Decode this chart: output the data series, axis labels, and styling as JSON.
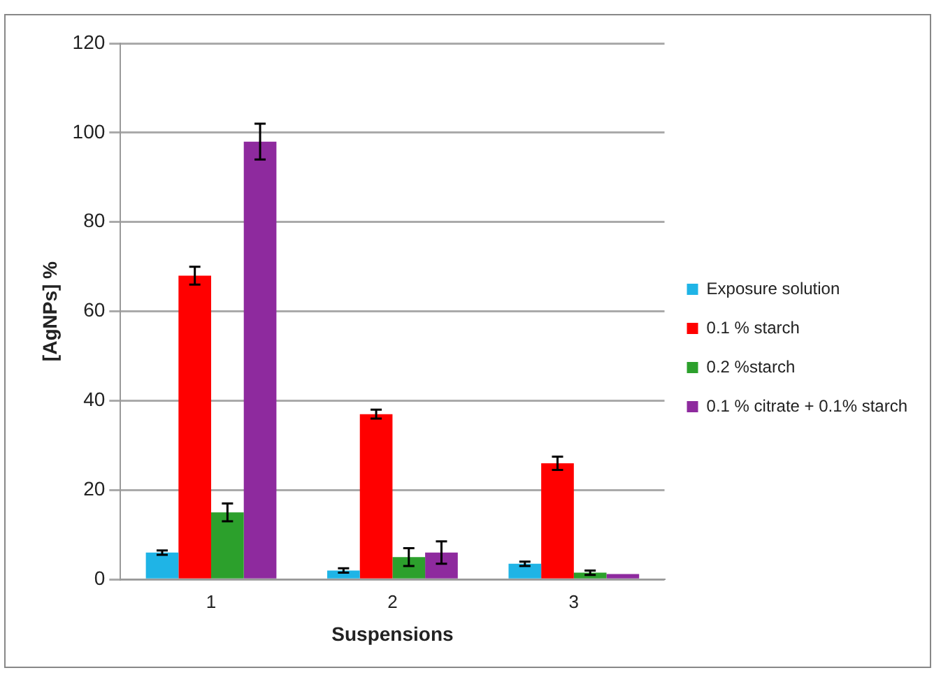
{
  "chart_data": {
    "type": "bar",
    "xlabel": "Suspensions",
    "ylabel": "[AgNPs] %",
    "categories": [
      "1",
      "2",
      "3"
    ],
    "series": [
      {
        "name": "Exposure solution",
        "color": "#1fb4e6",
        "values": [
          6,
          2,
          3.5
        ],
        "errors": [
          0.5,
          0.5,
          0.5
        ]
      },
      {
        "name": "0.1 % starch",
        "color": "#ff0000",
        "values": [
          68,
          37,
          26
        ],
        "errors": [
          2,
          1,
          1.5
        ]
      },
      {
        "name": "0.2 %starch",
        "color": "#2ca02c",
        "values": [
          15,
          5,
          1.5
        ],
        "errors": [
          2,
          2,
          0.5
        ]
      },
      {
        "name": "0.1 % citrate + 0.1% starch",
        "color": "#8e2a9e",
        "values": [
          98,
          6,
          1.2
        ],
        "errors": [
          4,
          2.5,
          null
        ]
      }
    ],
    "ylim": [
      0,
      120
    ],
    "yticks": [
      0,
      20,
      40,
      60,
      80,
      100,
      120
    ],
    "grid": "y",
    "legend": "right"
  }
}
